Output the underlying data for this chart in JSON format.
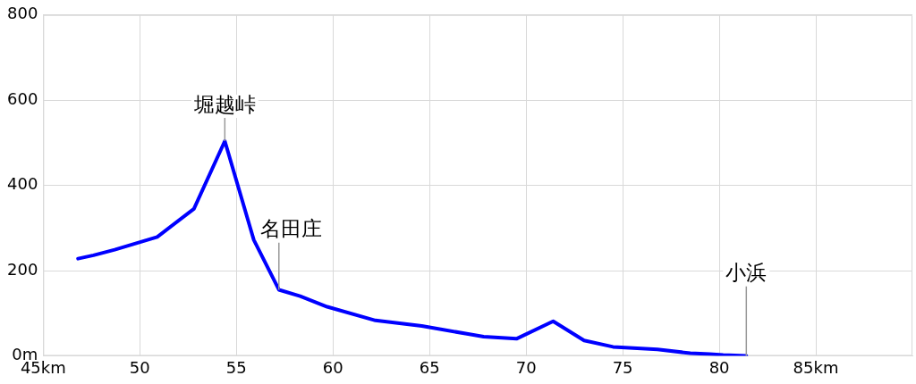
{
  "chart_data": {
    "type": "line",
    "x": [
      46.8,
      47.6,
      48.7,
      50.9,
      52.8,
      54.4,
      55.9,
      57.2,
      58.3,
      59.7,
      62.2,
      64.6,
      67.0,
      67.8,
      69.5,
      71.4,
      73.0,
      74.5,
      76.8,
      78.5,
      79.5,
      80.2,
      81.4
    ],
    "values": [
      228,
      236,
      249,
      279,
      345,
      504,
      272,
      155,
      140,
      115,
      83,
      70,
      51,
      45,
      40,
      81,
      36,
      21,
      15,
      6,
      4,
      2,
      0
    ],
    "color": "#0000ff",
    "xlim": [
      45,
      90
    ],
    "xticks": [
      {
        "value": 45,
        "label": "45km"
      },
      50,
      55,
      60,
      65,
      70,
      75,
      80,
      {
        "value": 85,
        "label": "85km"
      }
    ],
    "ylim": [
      0,
      800
    ],
    "yticks": [
      {
        "value": 0,
        "label": "0m"
      },
      200,
      400,
      600,
      800
    ],
    "grid": true,
    "annotations": [
      {
        "text": "堀越峠",
        "x": 54.4,
        "y": 504
      },
      {
        "text": "名田庄",
        "x": 57.2,
        "y": 155
      },
      {
        "text": "小浜",
        "x": 81.4,
        "y": 0
      }
    ]
  }
}
